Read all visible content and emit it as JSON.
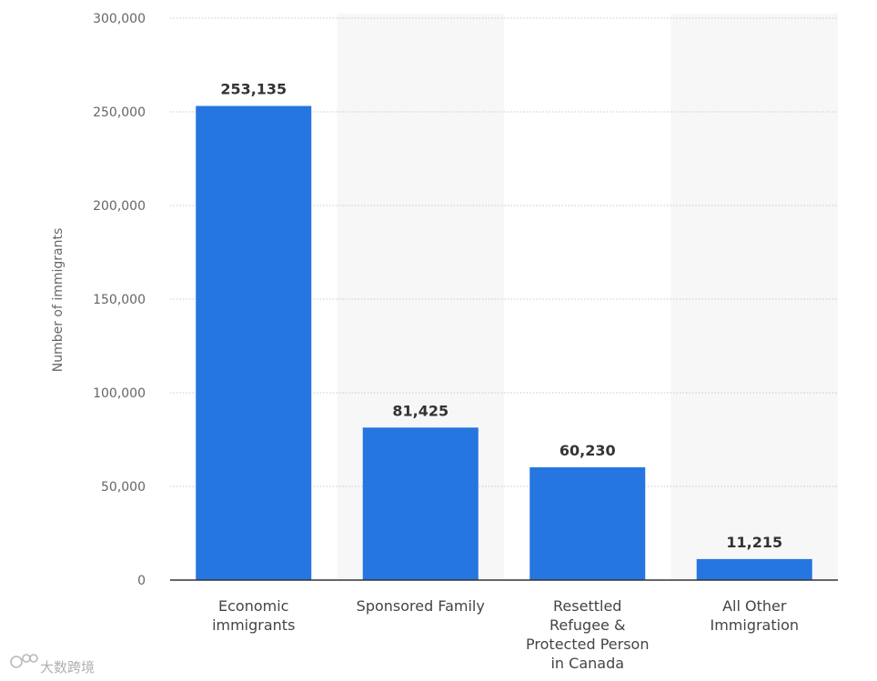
{
  "chart_data": {
    "type": "bar",
    "categories": [
      [
        "Economic",
        "immigrants"
      ],
      [
        "Sponsored Family"
      ],
      [
        "Resettled",
        "Refugee &",
        "Protected Person",
        "in Canada"
      ],
      [
        "All Other",
        "Immigration"
      ]
    ],
    "values": [
      253135,
      81425,
      60230,
      11215
    ],
    "value_labels": [
      "253,135",
      "81,425",
      "60,230",
      "11,215"
    ],
    "ylabel": "Number of immigrants",
    "ylim": [
      0,
      300000
    ],
    "yticks": [
      0,
      50000,
      100000,
      150000,
      200000,
      250000,
      300000
    ],
    "ytick_labels": [
      "0",
      "50,000",
      "100,000",
      "150,000",
      "200,000",
      "250,000",
      "300,000"
    ],
    "grid": true,
    "bar_color": "#2576e0",
    "band_color": "#f7f7f7",
    "grid_color": "#c8c8c8",
    "axis_color": "#333333"
  },
  "watermark": {
    "icon": "logo-icon",
    "text": "大数跨境"
  }
}
